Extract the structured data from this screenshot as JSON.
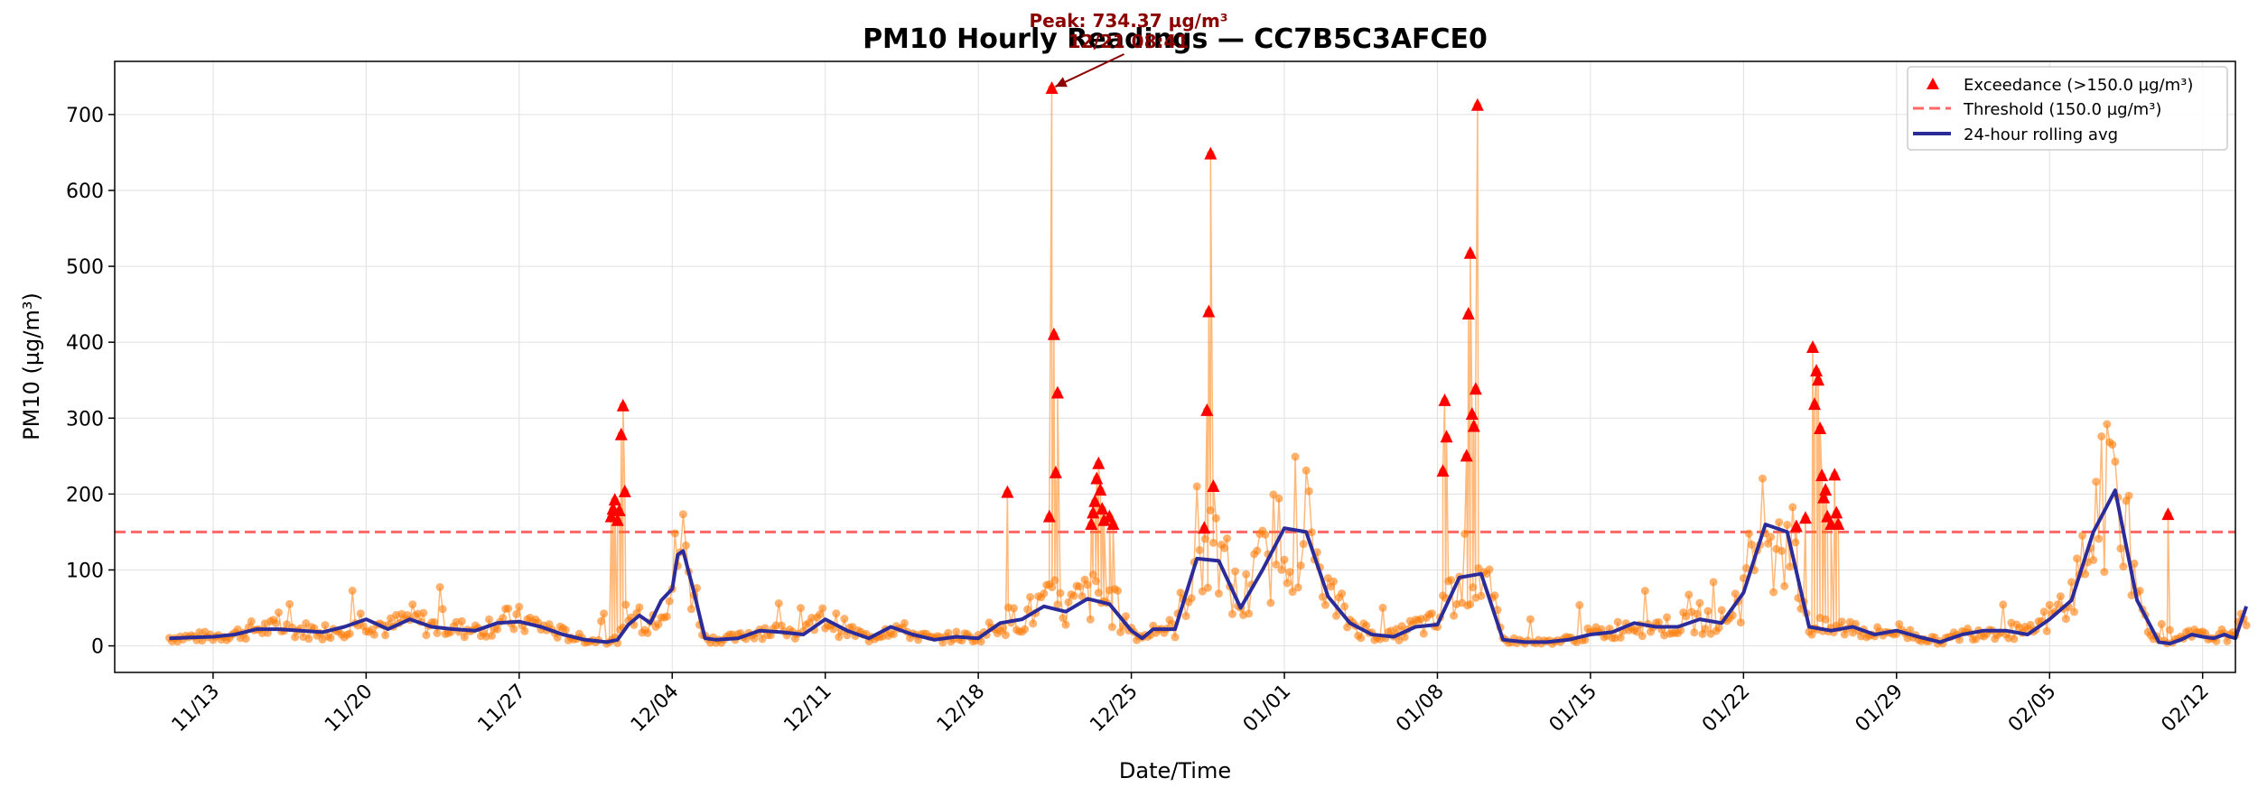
{
  "chart_data": {
    "type": "line",
    "title": "PM10 Hourly Readings — CC7B5C3AFCE0",
    "xlabel": "Date/Time",
    "ylabel": "PM10 (µg/m³)",
    "x_range": [
      "2024-11-08T12:00",
      "2025-02-13T12:00"
    ],
    "ylim": [
      -35,
      770
    ],
    "y_ticks": [
      0,
      100,
      200,
      300,
      400,
      500,
      600,
      700
    ],
    "x_ticks": [
      {
        "date": "2024-11-13",
        "label": "11/13"
      },
      {
        "date": "2024-11-20",
        "label": "11/20"
      },
      {
        "date": "2024-11-27",
        "label": "11/27"
      },
      {
        "date": "2024-12-04",
        "label": "12/04"
      },
      {
        "date": "2024-12-11",
        "label": "12/11"
      },
      {
        "date": "2024-12-18",
        "label": "12/18"
      },
      {
        "date": "2024-12-25",
        "label": "12/25"
      },
      {
        "date": "2025-01-01",
        "label": "01/01"
      },
      {
        "date": "2025-01-08",
        "label": "01/08"
      },
      {
        "date": "2025-01-15",
        "label": "01/15"
      },
      {
        "date": "2025-01-22",
        "label": "01/22"
      },
      {
        "date": "2025-01-29",
        "label": "01/29"
      },
      {
        "date": "2025-02-05",
        "label": "02/05"
      },
      {
        "date": "2025-02-12",
        "label": "02/12"
      }
    ],
    "grid": true,
    "legend_position": "top-right",
    "threshold": 150.0,
    "legend": {
      "exceedance": "Exceedance (>150.0 µg/m³)",
      "threshold": "Threshold (150.0 µg/m³)",
      "rolling": "24-hour rolling avg"
    },
    "colors": {
      "readings": "#ff7f0e",
      "exceedance": "#ff0000",
      "threshold": "#ff6666",
      "rolling": "#2b2b99",
      "annotation": "#8b0000"
    },
    "annotation": {
      "line1": "Peak: 734.37 µg/m³",
      "line2": "12/21 08:41",
      "x": "2024-12-21T08:41",
      "y": 734.37
    },
    "series": [
      {
        "name": "Exceedance (>150.0 µg/m³)",
        "kind": "markers",
        "points": [
          [
            "2024-12-01T05:00",
            170
          ],
          [
            "2024-12-01T07:00",
            180
          ],
          [
            "2024-12-01T09:00",
            192
          ],
          [
            "2024-12-01T12:00",
            165
          ],
          [
            "2024-12-01T14:00",
            178
          ],
          [
            "2024-12-01T16:00",
            278
          ],
          [
            "2024-12-01T18:00",
            316
          ],
          [
            "2024-12-01T20:00",
            203
          ],
          [
            "2024-12-19T08:00",
            202
          ],
          [
            "2024-12-21T06:00",
            170
          ],
          [
            "2024-12-21T08:41",
            734.37
          ],
          [
            "2024-12-21T11:00",
            410
          ],
          [
            "2024-12-21T13:00",
            228
          ],
          [
            "2024-12-21T15:00",
            333
          ],
          [
            "2024-12-23T04:00",
            160
          ],
          [
            "2024-12-23T06:00",
            175
          ],
          [
            "2024-12-23T08:00",
            190
          ],
          [
            "2024-12-23T10:00",
            220
          ],
          [
            "2024-12-23T12:00",
            240
          ],
          [
            "2024-12-23T14:00",
            205
          ],
          [
            "2024-12-23T16:00",
            180
          ],
          [
            "2024-12-23T18:00",
            165
          ],
          [
            "2024-12-24T00:00",
            170
          ],
          [
            "2024-12-24T04:00",
            160
          ],
          [
            "2024-12-28T08:00",
            155
          ],
          [
            "2024-12-28T11:00",
            310
          ],
          [
            "2024-12-28T13:00",
            440
          ],
          [
            "2024-12-28T15:00",
            648
          ],
          [
            "2024-12-28T18:00",
            210
          ],
          [
            "2025-01-08T06:00",
            230
          ],
          [
            "2025-01-08T08:00",
            323
          ],
          [
            "2025-01-08T10:00",
            275
          ],
          [
            "2025-01-09T08:00",
            250
          ],
          [
            "2025-01-09T10:00",
            437
          ],
          [
            "2025-01-09T12:00",
            517
          ],
          [
            "2025-01-09T14:00",
            305
          ],
          [
            "2025-01-09T16:00",
            289
          ],
          [
            "2025-01-09T18:00",
            338
          ],
          [
            "2025-01-09T20:00",
            712
          ],
          [
            "2025-01-24T10:00",
            157
          ],
          [
            "2025-01-24T20:00",
            168
          ],
          [
            "2025-01-25T04:00",
            393
          ],
          [
            "2025-01-25T06:00",
            318
          ],
          [
            "2025-01-25T08:00",
            362
          ],
          [
            "2025-01-25T10:00",
            350
          ],
          [
            "2025-01-25T12:00",
            286
          ],
          [
            "2025-01-25T14:00",
            224
          ],
          [
            "2025-01-25T16:00",
            195
          ],
          [
            "2025-01-25T18:00",
            205
          ],
          [
            "2025-01-25T20:00",
            170
          ],
          [
            "2025-01-26T00:00",
            160
          ],
          [
            "2025-01-26T04:00",
            225
          ],
          [
            "2025-01-26T06:00",
            175
          ],
          [
            "2025-01-26T08:00",
            160
          ],
          [
            "2025-02-10T10:00",
            173
          ]
        ]
      },
      {
        "name": "24-hour rolling avg",
        "kind": "line",
        "points": [
          [
            "2024-11-11",
            10
          ],
          [
            "2024-11-12",
            11
          ],
          [
            "2024-11-13",
            12
          ],
          [
            "2024-11-14",
            15
          ],
          [
            "2024-11-15",
            22
          ],
          [
            "2024-11-16",
            22
          ],
          [
            "2024-11-17",
            20
          ],
          [
            "2024-11-18",
            18
          ],
          [
            "2024-11-19",
            25
          ],
          [
            "2024-11-20",
            35
          ],
          [
            "2024-11-21",
            22
          ],
          [
            "2024-11-22",
            35
          ],
          [
            "2024-11-23",
            25
          ],
          [
            "2024-11-24",
            22
          ],
          [
            "2024-11-25",
            20
          ],
          [
            "2024-11-26",
            30
          ],
          [
            "2024-11-27",
            32
          ],
          [
            "2024-11-28",
            25
          ],
          [
            "2024-11-29",
            15
          ],
          [
            "2024-11-30",
            8
          ],
          [
            "2024-12-01",
            5
          ],
          [
            "2024-12-01T12:00",
            8
          ],
          [
            "2024-12-02",
            28
          ],
          [
            "2024-12-02T12:00",
            40
          ],
          [
            "2024-12-03",
            30
          ],
          [
            "2024-12-03T12:00",
            60
          ],
          [
            "2024-12-04",
            75
          ],
          [
            "2024-12-04T06:00",
            120
          ],
          [
            "2024-12-04T12:00",
            125
          ],
          [
            "2024-12-05",
            70
          ],
          [
            "2024-12-05T12:00",
            10
          ],
          [
            "2024-12-06",
            8
          ],
          [
            "2024-12-07",
            10
          ],
          [
            "2024-12-08",
            20
          ],
          [
            "2024-12-09",
            18
          ],
          [
            "2024-12-10",
            15
          ],
          [
            "2024-12-11",
            35
          ],
          [
            "2024-12-12",
            20
          ],
          [
            "2024-12-13",
            10
          ],
          [
            "2024-12-14",
            25
          ],
          [
            "2024-12-15",
            15
          ],
          [
            "2024-12-16",
            8
          ],
          [
            "2024-12-17",
            12
          ],
          [
            "2024-12-18",
            10
          ],
          [
            "2024-12-19",
            30
          ],
          [
            "2024-12-20",
            35
          ],
          [
            "2024-12-21",
            52
          ],
          [
            "2024-12-22",
            45
          ],
          [
            "2024-12-23",
            62
          ],
          [
            "2024-12-24",
            55
          ],
          [
            "2024-12-25",
            20
          ],
          [
            "2024-12-25T12:00",
            10
          ],
          [
            "2024-12-26",
            22
          ],
          [
            "2024-12-27",
            22
          ],
          [
            "2024-12-28",
            115
          ],
          [
            "2024-12-29",
            112
          ],
          [
            "2024-12-30",
            50
          ],
          [
            "2024-12-31",
            100
          ],
          [
            "2025-01-01",
            155
          ],
          [
            "2025-01-02",
            150
          ],
          [
            "2025-01-03",
            65
          ],
          [
            "2025-01-04",
            30
          ],
          [
            "2025-01-05",
            15
          ],
          [
            "2025-01-06",
            12
          ],
          [
            "2025-01-07",
            25
          ],
          [
            "2025-01-08",
            28
          ],
          [
            "2025-01-09",
            90
          ],
          [
            "2025-01-10",
            95
          ],
          [
            "2025-01-11",
            8
          ],
          [
            "2025-01-12",
            5
          ],
          [
            "2025-01-13",
            5
          ],
          [
            "2025-01-14",
            8
          ],
          [
            "2025-01-15",
            15
          ],
          [
            "2025-01-16",
            18
          ],
          [
            "2025-01-17",
            30
          ],
          [
            "2025-01-18",
            25
          ],
          [
            "2025-01-19",
            25
          ],
          [
            "2025-01-20",
            35
          ],
          [
            "2025-01-21",
            30
          ],
          [
            "2025-01-22",
            70
          ],
          [
            "2025-01-23",
            160
          ],
          [
            "2025-01-24",
            150
          ],
          [
            "2025-01-25",
            25
          ],
          [
            "2025-01-26",
            20
          ],
          [
            "2025-01-27",
            25
          ],
          [
            "2025-01-28",
            15
          ],
          [
            "2025-01-29",
            20
          ],
          [
            "2025-01-30",
            12
          ],
          [
            "2025-01-31",
            5
          ],
          [
            "2025-02-01",
            15
          ],
          [
            "2025-02-02",
            20
          ],
          [
            "2025-02-03",
            20
          ],
          [
            "2025-02-04",
            15
          ],
          [
            "2025-02-05",
            35
          ],
          [
            "2025-02-06",
            60
          ],
          [
            "2025-02-07",
            150
          ],
          [
            "2025-02-08",
            205
          ],
          [
            "2025-02-09",
            60
          ],
          [
            "2025-02-10",
            5
          ],
          [
            "2025-02-10T12:00",
            3
          ],
          [
            "2025-02-11",
            8
          ],
          [
            "2025-02-11T12:00",
            15
          ],
          [
            "2025-02-12",
            12
          ],
          [
            "2025-02-12T12:00",
            10
          ],
          [
            "2025-02-13",
            15
          ],
          [
            "2025-02-13T06:00",
            12
          ],
          [
            "2025-02-13T12:00",
            10
          ],
          [
            "2025-02-14",
            52
          ]
        ]
      }
    ]
  }
}
